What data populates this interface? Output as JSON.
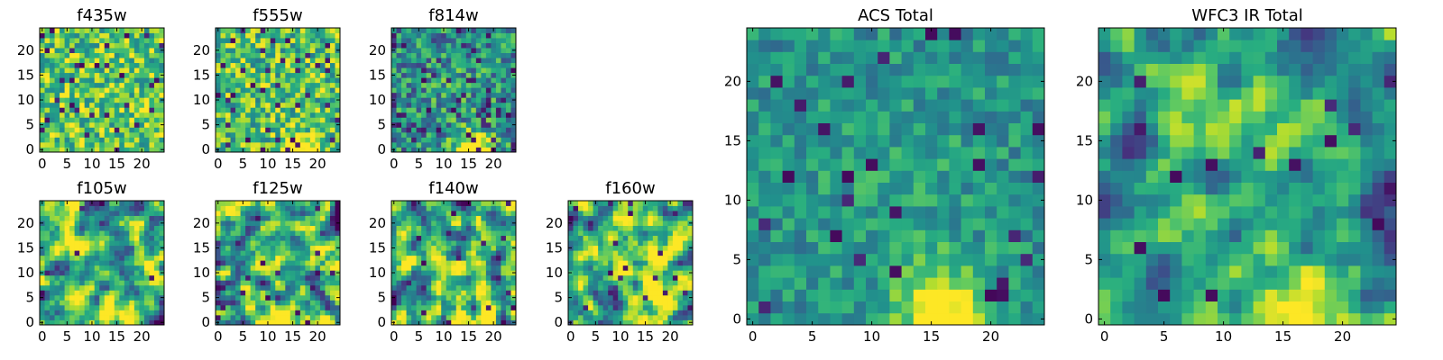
{
  "colormap": {
    "name": "viridis",
    "stops": [
      "#440154",
      "#472d7b",
      "#3b528b",
      "#2c728e",
      "#21918c",
      "#28ae80",
      "#5ec962",
      "#addc30",
      "#fde725"
    ]
  },
  "chart_data": [
    {
      "type": "heatmap",
      "title": "f435w",
      "grid_size": [
        25,
        25
      ],
      "x_ticks": [
        0,
        5,
        10,
        15,
        20
      ],
      "y_ticks": [
        0,
        5,
        10,
        15,
        20
      ],
      "xlim": [
        -0.5,
        24.5
      ],
      "ylim": [
        -0.5,
        24.5
      ],
      "data_generation": {
        "seed": 11,
        "smooth": 0,
        "noise": 0.3,
        "base": 0.74,
        "low_prob": 0.05,
        "blobs": []
      }
    },
    {
      "type": "heatmap",
      "title": "f555w",
      "grid_size": [
        25,
        25
      ],
      "x_ticks": [
        0,
        5,
        10,
        15,
        20
      ],
      "y_ticks": [
        0,
        5,
        10,
        15,
        20
      ],
      "xlim": [
        -0.5,
        24.5
      ],
      "ylim": [
        -0.5,
        24.5
      ],
      "data_generation": {
        "seed": 23,
        "smooth": 0,
        "noise": 0.3,
        "base": 0.71,
        "low_prob": 0.06,
        "blobs": [
          {
            "x": 16,
            "y": 0,
            "r": 2.2,
            "amp": 0.6
          }
        ]
      }
    },
    {
      "type": "heatmap",
      "title": "f814w",
      "grid_size": [
        25,
        25
      ],
      "x_ticks": [
        0,
        5,
        10,
        15,
        20
      ],
      "y_ticks": [
        0,
        5,
        10,
        15,
        20
      ],
      "xlim": [
        -0.5,
        24.5
      ],
      "ylim": [
        -0.5,
        24.5
      ],
      "data_generation": {
        "seed": 37,
        "smooth": 0,
        "noise": 0.3,
        "base": 0.48,
        "low_prob": 0.09,
        "blobs": [
          {
            "x": 16,
            "y": 0,
            "r": 2.6,
            "amp": 0.8
          },
          {
            "x": 12,
            "y": 12,
            "r": 5,
            "amp": 0.08
          }
        ]
      }
    },
    {
      "type": "heatmap",
      "title": "f105w",
      "grid_size": [
        25,
        25
      ],
      "x_ticks": [
        0,
        5,
        10,
        15,
        20
      ],
      "y_ticks": [
        0,
        5,
        10,
        15,
        20
      ],
      "xlim": [
        -0.5,
        24.5
      ],
      "ylim": [
        -0.5,
        24.5
      ],
      "data_generation": {
        "seed": 41,
        "smooth": 1,
        "noise": 0.5,
        "base": 0.62,
        "low_prob": 0.01,
        "blobs": [
          {
            "x": 16,
            "y": 1,
            "r": 2.8,
            "amp": 0.4
          }
        ]
      }
    },
    {
      "type": "heatmap",
      "title": "f125w",
      "grid_size": [
        25,
        25
      ],
      "x_ticks": [
        0,
        5,
        10,
        15,
        20
      ],
      "y_ticks": [
        0,
        5,
        10,
        15,
        20
      ],
      "xlim": [
        -0.5,
        24.5
      ],
      "ylim": [
        -0.5,
        24.5
      ],
      "data_generation": {
        "seed": 53,
        "smooth": 1,
        "noise": 0.55,
        "base": 0.62,
        "low_prob": 0.02,
        "blobs": [
          {
            "x": 16,
            "y": 1,
            "r": 3.2,
            "amp": 0.45
          }
        ]
      }
    },
    {
      "type": "heatmap",
      "title": "f140w",
      "grid_size": [
        25,
        25
      ],
      "x_ticks": [
        0,
        5,
        10,
        15,
        20
      ],
      "y_ticks": [
        0,
        5,
        10,
        15,
        20
      ],
      "xlim": [
        -0.5,
        24.5
      ],
      "ylim": [
        -0.5,
        24.5
      ],
      "data_generation": {
        "seed": 67,
        "smooth": 1,
        "noise": 0.55,
        "base": 0.6,
        "low_prob": 0.01,
        "blobs": [
          {
            "x": 17,
            "y": 1,
            "r": 3.2,
            "amp": 0.45
          }
        ]
      }
    },
    {
      "type": "heatmap",
      "title": "f160w",
      "grid_size": [
        25,
        25
      ],
      "x_ticks": [
        0,
        5,
        10,
        15,
        20
      ],
      "y_ticks": [
        0,
        5,
        10,
        15,
        20
      ],
      "xlim": [
        -0.5,
        24.5
      ],
      "ylim": [
        -0.5,
        24.5
      ],
      "data_generation": {
        "seed": 79,
        "smooth": 1,
        "noise": 0.5,
        "base": 0.62,
        "low_prob": 0.02,
        "blobs": [
          {
            "x": 13,
            "y": 12,
            "r": 4.5,
            "amp": 0.3
          },
          {
            "x": 17,
            "y": 1,
            "r": 3,
            "amp": 0.35
          }
        ]
      }
    },
    {
      "type": "heatmap",
      "title": "ACS Total",
      "grid_size": [
        25,
        25
      ],
      "x_ticks": [
        0,
        5,
        10,
        15,
        20
      ],
      "y_ticks": [
        0,
        5,
        10,
        15,
        20
      ],
      "xlim": [
        -0.5,
        24.5
      ],
      "ylim": [
        -0.5,
        24.5
      ],
      "data_generation": {
        "seed": 97,
        "smooth": 0,
        "noise": 0.17,
        "base": 0.5,
        "low_prob": 0.05,
        "blobs": [
          {
            "x": 16,
            "y": 0.5,
            "r": 2.6,
            "amp": 0.65
          },
          {
            "x": 12,
            "y": 12,
            "r": 6,
            "amp": 0.08
          }
        ]
      }
    },
    {
      "type": "heatmap",
      "title": "WFC3 IR Total",
      "grid_size": [
        25,
        25
      ],
      "x_ticks": [
        0,
        5,
        10,
        15,
        20
      ],
      "y_ticks": [
        0,
        5,
        10,
        15,
        20
      ],
      "xlim": [
        -0.5,
        24.5
      ],
      "ylim": [
        -0.5,
        24.5
      ],
      "data_generation": {
        "seed": 113,
        "smooth": 1,
        "noise": 0.32,
        "base": 0.5,
        "low_prob": 0.03,
        "blobs": [
          {
            "x": 16,
            "y": 1,
            "r": 3.3,
            "amp": 0.55
          },
          {
            "x": 12,
            "y": 14,
            "r": 5,
            "amp": 0.18
          },
          {
            "x": 7,
            "y": 19,
            "r": 2.3,
            "amp": 0.18
          }
        ]
      }
    }
  ]
}
